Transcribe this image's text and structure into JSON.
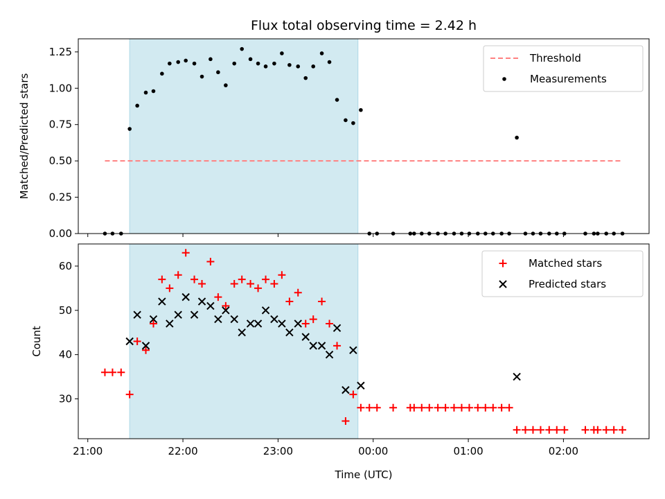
{
  "figure_title": "Flux total observing time = 2.42 h",
  "chart_data": [
    {
      "type": "scatter",
      "ylabel": "Matched/Predicted stars",
      "xlabel": "",
      "ylim": [
        0,
        1.34
      ],
      "xlim_hours": [
        20.9,
        26.9
      ],
      "yticks": [
        0.0,
        0.25,
        0.5,
        0.75,
        1.0,
        1.25
      ],
      "ytick_labels": [
        "0.00",
        "0.25",
        "0.50",
        "0.75",
        "1.00",
        "1.25"
      ],
      "shaded_span_hours": [
        21.44,
        23.84
      ],
      "shaded_color": "#add8e6",
      "legend_position": "upper right",
      "legend": [
        "Threshold",
        "Measurements"
      ],
      "series": [
        {
          "name": "Threshold",
          "style": "dashed-line",
          "color": "#ff8080",
          "x_hours": [
            21.18,
            26.62
          ],
          "values": [
            0.5,
            0.5
          ]
        },
        {
          "name": "Measurements",
          "style": "dot",
          "color": "#000000",
          "x_hours": [
            21.18,
            21.26,
            21.35,
            21.44,
            21.52,
            21.61,
            21.69,
            21.78,
            21.86,
            21.95,
            22.03,
            22.12,
            22.2,
            22.29,
            22.37,
            22.45,
            22.54,
            22.62,
            22.71,
            22.79,
            22.87,
            22.96,
            23.04,
            23.12,
            23.21,
            23.29,
            23.37,
            23.46,
            23.54,
            23.62,
            23.71,
            23.79,
            23.87,
            23.96,
            24.04,
            24.21,
            24.39,
            24.43,
            24.51,
            24.59,
            24.68,
            24.76,
            24.85,
            24.93,
            25.01,
            25.1,
            25.18,
            25.26,
            25.35,
            25.43,
            25.51,
            25.6,
            25.68,
            25.76,
            25.85,
            25.93,
            26.01,
            26.23,
            26.32,
            26.36,
            26.45,
            26.53,
            26.62
          ],
          "values": [
            0,
            0,
            0,
            0.72,
            0.88,
            0.97,
            0.98,
            1.1,
            1.17,
            1.18,
            1.19,
            1.17,
            1.08,
            1.2,
            1.11,
            1.02,
            1.17,
            1.27,
            1.2,
            1.17,
            1.15,
            1.17,
            1.24,
            1.16,
            1.15,
            1.07,
            1.15,
            1.24,
            1.18,
            0.92,
            0.78,
            0.76,
            0.85,
            0,
            0,
            0,
            0,
            0,
            0,
            0,
            0,
            0,
            0,
            0,
            0,
            0,
            0,
            0,
            0,
            0,
            0.66,
            0,
            0,
            0,
            0,
            0,
            0,
            0,
            0,
            0,
            0,
            0,
            0
          ]
        }
      ]
    },
    {
      "type": "scatter",
      "ylabel": "Count",
      "xlabel": "Time (UTC)",
      "ylim": [
        21,
        65
      ],
      "xlim_hours": [
        20.9,
        26.9
      ],
      "yticks": [
        30,
        40,
        50,
        60
      ],
      "ytick_labels": [
        "30",
        "40",
        "50",
        "60"
      ],
      "xticks_hours": [
        21,
        22,
        23,
        24,
        25,
        26
      ],
      "xtick_labels": [
        "21:00",
        "22:00",
        "23:00",
        "00:00",
        "01:00",
        "02:00"
      ],
      "shaded_span_hours": [
        21.44,
        23.84
      ],
      "shaded_color": "#add8e6",
      "legend_position": "upper right",
      "legend": [
        "Matched stars",
        "Predicted stars"
      ],
      "series": [
        {
          "name": "Matched stars",
          "marker": "plus",
          "color": "#ff0000",
          "x_hours": [
            21.18,
            21.26,
            21.35,
            21.44,
            21.52,
            21.61,
            21.69,
            21.78,
            21.86,
            21.95,
            22.03,
            22.12,
            22.2,
            22.29,
            22.37,
            22.45,
            22.54,
            22.62,
            22.71,
            22.79,
            22.87,
            22.96,
            23.04,
            23.12,
            23.21,
            23.29,
            23.37,
            23.46,
            23.54,
            23.62,
            23.71,
            23.79,
            23.87,
            23.96,
            24.04,
            24.21,
            24.39,
            24.43,
            24.51,
            24.59,
            24.68,
            24.76,
            24.85,
            24.93,
            25.01,
            25.1,
            25.18,
            25.26,
            25.35,
            25.43,
            25.51,
            25.6,
            25.68,
            25.76,
            25.85,
            25.93,
            26.01,
            26.23,
            26.32,
            26.36,
            26.45,
            26.53,
            26.62
          ],
          "values": [
            36,
            36,
            36,
            31,
            43,
            41,
            47,
            57,
            55,
            58,
            63,
            57,
            56,
            61,
            53,
            51,
            56,
            57,
            56,
            55,
            57,
            56,
            58,
            52,
            54,
            47,
            48,
            52,
            47,
            42,
            25,
            31,
            28,
            28,
            28,
            28,
            28,
            28,
            28,
            28,
            28,
            28,
            28,
            28,
            28,
            28,
            28,
            28,
            28,
            28,
            23,
            23,
            23,
            23,
            23,
            23,
            23,
            23,
            23,
            23,
            23,
            23,
            23
          ]
        },
        {
          "name": "Predicted stars",
          "marker": "x",
          "color": "#000000",
          "x_hours": [
            21.44,
            21.52,
            21.61,
            21.69,
            21.78,
            21.86,
            21.95,
            22.03,
            22.12,
            22.2,
            22.29,
            22.37,
            22.45,
            22.54,
            22.62,
            22.71,
            22.79,
            22.87,
            22.96,
            23.04,
            23.12,
            23.21,
            23.29,
            23.37,
            23.46,
            23.54,
            23.62,
            23.71,
            23.79,
            23.87,
            25.51
          ],
          "values": [
            43,
            49,
            42,
            48,
            52,
            47,
            49,
            53,
            49,
            52,
            51,
            48,
            50,
            48,
            45,
            47,
            47,
            50,
            48,
            47,
            45,
            47,
            44,
            42,
            42,
            40,
            46,
            32,
            41,
            33,
            35
          ]
        }
      ]
    }
  ]
}
